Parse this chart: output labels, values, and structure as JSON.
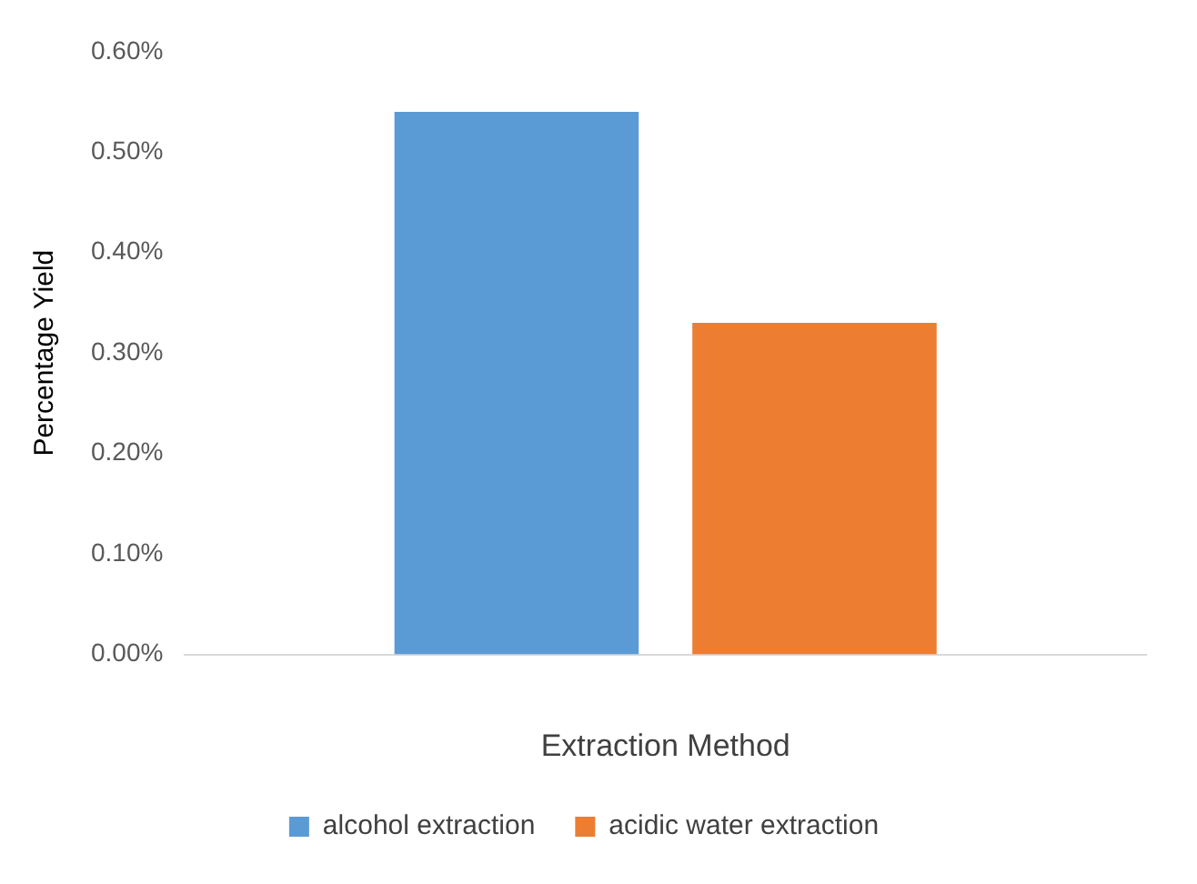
{
  "chart_data": {
    "type": "bar",
    "xlabel": "Extraction Method",
    "ylabel": "Percentage Yield",
    "categories": [
      null
    ],
    "series": [
      {
        "name": "alcohol extraction",
        "color": "#5b9bd5",
        "values": [
          0.54
        ]
      },
      {
        "name": "acidic water extraction",
        "color": "#ed7d31",
        "values": [
          0.33
        ]
      }
    ],
    "ylim": [
      0,
      0.6
    ],
    "yticks": [
      {
        "value": 0,
        "label": "0.00%"
      },
      {
        "value": 0.1,
        "label": "0.10%"
      },
      {
        "value": 0.2,
        "label": "0.20%"
      },
      {
        "value": 0.3,
        "label": "0.30%"
      },
      {
        "value": 0.4,
        "label": "0.40%"
      },
      {
        "value": 0.5,
        "label": "0.50%"
      },
      {
        "value": 0.6,
        "label": "0.60%"
      }
    ],
    "legend": "bottom"
  }
}
